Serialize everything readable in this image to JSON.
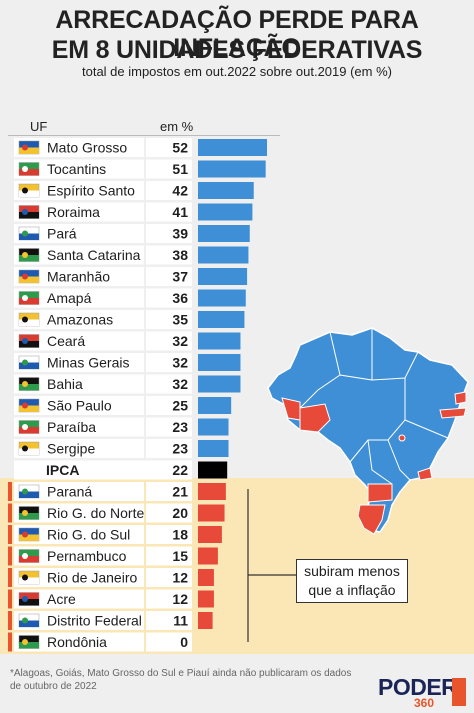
{
  "title_line1": "ARRECADAÇÃO PERDE PARA INFLAÇÃO",
  "title_line2": "EM 8 UNIDADES FEDERATIVAS",
  "subtitle": "total de impostos em out.2022 sobre out.2019 (em %)",
  "col_uf": "UF",
  "col_em": "em %",
  "legend_line1": "subiram menos",
  "legend_line2": "que a inflação",
  "footnote": "*Alagoas, Goiás, Mato Grosso do Sul e Piauí ainda não publicaram os dados de outubro de 2022",
  "logo_main": "PODER",
  "logo_sub": "360",
  "colors": {
    "above": "#3f8fd6",
    "below": "#e84a3a",
    "ipca": "#000000",
    "below_bg": "#fbe6b5",
    "row_bg": "#ffffff",
    "accent_marker": "#e8552c"
  },
  "chart_data": {
    "type": "bar",
    "orientation": "horizontal",
    "title": "ARRECADAÇÃO PERDE PARA INFLAÇÃO EM 8 UNIDADES FEDERATIVAS",
    "subtitle": "total de impostos em out.2022 sobre out.2019 (em %)",
    "xlabel": "em %",
    "ylabel": "UF",
    "xlim": [
      0,
      52
    ],
    "grid": false,
    "legend": "right",
    "rows": [
      {
        "label": "Mato Grosso",
        "value": 52,
        "group": "above"
      },
      {
        "label": "Tocantins",
        "value": 51,
        "group": "above"
      },
      {
        "label": "Espírito Santo",
        "value": 42,
        "group": "above"
      },
      {
        "label": "Roraima",
        "value": 41,
        "group": "above"
      },
      {
        "label": "Pará",
        "value": 39,
        "group": "above"
      },
      {
        "label": "Santa Catarina",
        "value": 38,
        "group": "above"
      },
      {
        "label": "Maranhão",
        "value": 37,
        "group": "above"
      },
      {
        "label": "Amapá",
        "value": 36,
        "group": "above"
      },
      {
        "label": "Amazonas",
        "value": 35,
        "group": "above"
      },
      {
        "label": "Ceará",
        "value": 32,
        "group": "above"
      },
      {
        "label": "Minas Gerais",
        "value": 32,
        "group": "above"
      },
      {
        "label": "Bahia",
        "value": 32,
        "group": "above"
      },
      {
        "label": "São Paulo",
        "value": 25,
        "group": "above"
      },
      {
        "label": "Paraíba",
        "value": 23,
        "group": "above"
      },
      {
        "label": "Sergipe",
        "value": 23,
        "group": "above"
      },
      {
        "label": "IPCA",
        "value": 22,
        "group": "ipca"
      },
      {
        "label": "Paraná",
        "value": 21,
        "group": "below"
      },
      {
        "label": "Rio G. do Norte",
        "value": 20,
        "group": "below"
      },
      {
        "label": "Rio G. do Sul",
        "value": 18,
        "group": "below"
      },
      {
        "label": "Pernambuco",
        "value": 15,
        "group": "below"
      },
      {
        "label": "Rio de Janeiro",
        "value": 12,
        "group": "below"
      },
      {
        "label": "Acre",
        "value": 12,
        "group": "below"
      },
      {
        "label": "Distrito Federal",
        "value": 11,
        "group": "below"
      },
      {
        "label": "Rondônia",
        "value": 0,
        "group": "below"
      }
    ]
  }
}
